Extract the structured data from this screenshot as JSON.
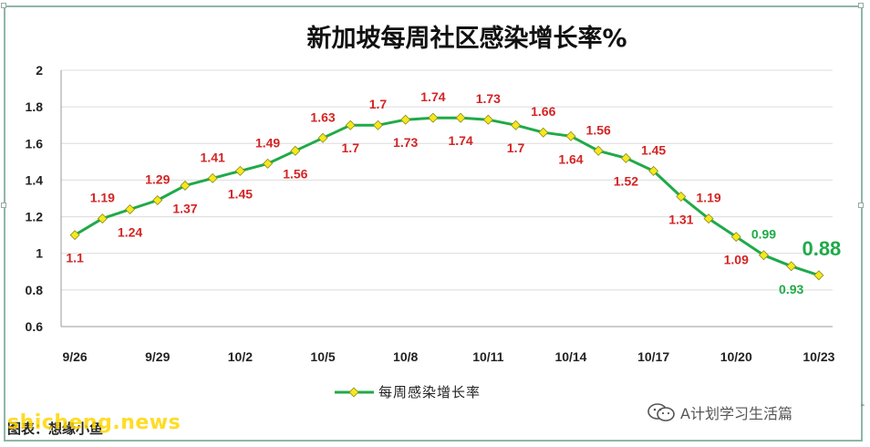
{
  "chart_data": {
    "type": "line",
    "title": "新加坡每周社区感染增长率%",
    "x": [
      "9/26",
      "9/27",
      "9/28",
      "9/29",
      "9/30",
      "10/1",
      "10/2",
      "10/3",
      "10/4",
      "10/5",
      "10/6",
      "10/7",
      "10/8",
      "10/9",
      "10/10",
      "10/11",
      "10/12",
      "10/13",
      "10/14",
      "10/15",
      "10/16",
      "10/17",
      "10/18",
      "10/19",
      "10/20",
      "10/21",
      "10/22",
      "10/23"
    ],
    "xticks": [
      "9/26",
      "9/29",
      "10/2",
      "10/5",
      "10/8",
      "10/11",
      "10/14",
      "10/17",
      "10/20",
      "10/23"
    ],
    "ylim": [
      0.6,
      2
    ],
    "yticks": [
      "0.6",
      "0.8",
      "1",
      "1.2",
      "1.4",
      "1.6",
      "1.8",
      "2"
    ],
    "grid": true,
    "legend_position": "bottom",
    "series": [
      {
        "name": "每周感染增长率",
        "color": "#1faa48",
        "marker_color": "#f5e81c",
        "values": [
          1.1,
          1.19,
          1.24,
          1.29,
          1.37,
          1.41,
          1.45,
          1.49,
          1.56,
          1.63,
          1.7,
          1.7,
          1.73,
          1.74,
          1.74,
          1.73,
          1.7,
          1.66,
          1.64,
          1.56,
          1.52,
          1.45,
          1.31,
          1.19,
          1.09,
          0.99,
          0.93,
          0.88
        ],
        "labels": [
          "1.1",
          "1.19",
          "1.24",
          "1.29",
          "1.37",
          "1.41",
          "1.45",
          "1.49",
          "1.56",
          "1.63",
          "1.7",
          "1.7",
          "1.73",
          "1.74",
          "1.74",
          "1.73",
          "1.7",
          "1.66",
          "1.64",
          "1.56",
          "1.52",
          "1.45",
          "1.31",
          "1.19",
          "1.09",
          "0.99",
          "0.93",
          "0.88"
        ],
        "label_sides": [
          "below",
          "above",
          "below",
          "above",
          "below",
          "above",
          "below",
          "above",
          "below",
          "above",
          "below",
          "above",
          "below",
          "above",
          "below",
          "above",
          "below",
          "above",
          "below",
          "above",
          "below",
          "above",
          "below",
          "above",
          "below",
          "above",
          "below",
          "above"
        ]
      }
    ],
    "label_colors": {
      "default": "#d42424",
      "below_one": "#1faa48"
    }
  },
  "footer": {
    "source": "图表：想缘小鱼",
    "watermark": "shicheng.news",
    "wechat_account": "A计划学习生活篇"
  }
}
